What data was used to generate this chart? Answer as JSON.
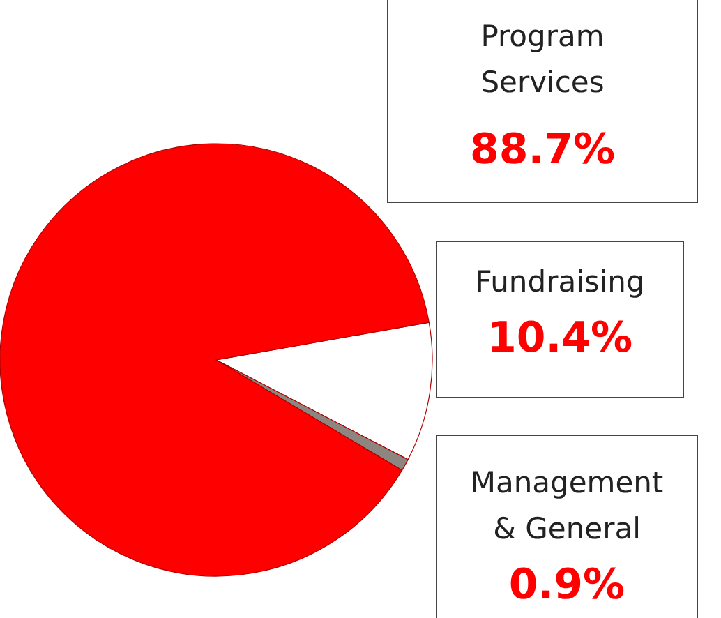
{
  "chart_data": {
    "type": "pie",
    "categories": [
      "Fundraising",
      "Management & General",
      "Program Services"
    ],
    "values": [
      10.4,
      0.9,
      88.7
    ],
    "value_labels": [
      "10.4%",
      "0.9%",
      "88.7%"
    ],
    "colors": [
      "#ffffff",
      "#8c8580",
      "#ff0000"
    ]
  }
}
